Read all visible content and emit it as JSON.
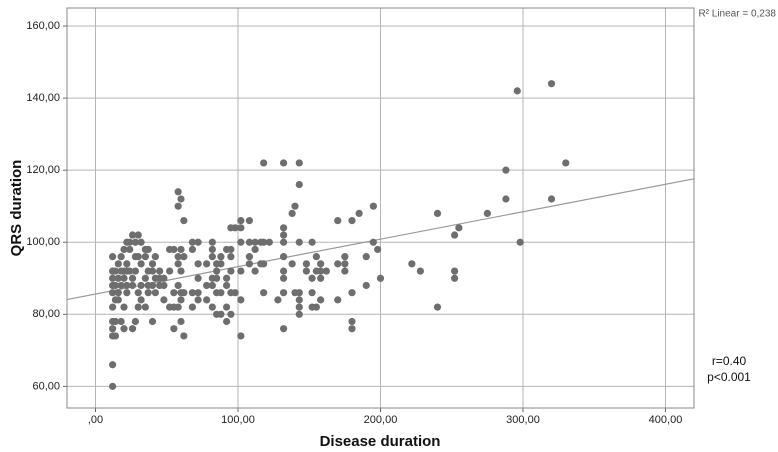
{
  "chart_data": {
    "type": "scatter",
    "x_label": "Disease duration",
    "y_label": "QRS duration",
    "annotations": [
      "R² Linear = 0,238",
      "r=0.40",
      "p<0.001"
    ],
    "color": "#6e6e6e",
    "grid": true,
    "xlim": [
      -20,
      420
    ],
    "ylim": [
      54,
      165
    ],
    "xticks": [
      {
        "value": 0,
        "label": ",00"
      },
      {
        "value": 100,
        "label": "100,00"
      },
      {
        "value": 200,
        "label": "200,00"
      },
      {
        "value": 300,
        "label": "300,00"
      },
      {
        "value": 400,
        "label": "400,00"
      }
    ],
    "yticks": [
      {
        "value": 60,
        "label": "60,00"
      },
      {
        "value": 80,
        "label": "80,00"
      },
      {
        "value": 100,
        "label": "100,00"
      },
      {
        "value": 120,
        "label": "120,00"
      },
      {
        "value": 140,
        "label": "140,00"
      },
      {
        "value": 160,
        "label": "160,00"
      }
    ],
    "fit_line": {
      "color": "#999999",
      "x": [
        -20,
        420
      ],
      "values": [
        84.1,
        117.6
      ]
    },
    "x": [
      12,
      12,
      12,
      12,
      12,
      12,
      12,
      12,
      12,
      12,
      12,
      14,
      14,
      14,
      14,
      14,
      16,
      16,
      16,
      16,
      18,
      18,
      18,
      18,
      20,
      20,
      20,
      20,
      20,
      22,
      22,
      22,
      22,
      22,
      24,
      24,
      24,
      26,
      26,
      26,
      26,
      28,
      28,
      28,
      28,
      30,
      30,
      30,
      30,
      32,
      32,
      32,
      32,
      35,
      35,
      35,
      35,
      37,
      37,
      37,
      37,
      40,
      40,
      40,
      40,
      42,
      42,
      42,
      45,
      45,
      45,
      48,
      48,
      48,
      52,
      52,
      52,
      55,
      55,
      55,
      55,
      58,
      58,
      58,
      58,
      58,
      58,
      60,
      60,
      60,
      60,
      60,
      60,
      62,
      62,
      62,
      62,
      68,
      68,
      68,
      68,
      72,
      72,
      72,
      72,
      72,
      78,
      78,
      78,
      82,
      82,
      82,
      82,
      82,
      82,
      85,
      85,
      85,
      85,
      85,
      88,
      88,
      88,
      88,
      92,
      92,
      92,
      92,
      92,
      95,
      95,
      95,
      95,
      95,
      95,
      98,
      98,
      102,
      102,
      102,
      102,
      102,
      102,
      108,
      108,
      108,
      108,
      112,
      112,
      112,
      116,
      116,
      118,
      118,
      118,
      118,
      122,
      128,
      132,
      132,
      132,
      132,
      132,
      132,
      132,
      132,
      132,
      138,
      138,
      140,
      140,
      143,
      143,
      143,
      143,
      143,
      143,
      143,
      148,
      148,
      152,
      152,
      152,
      152,
      155,
      155,
      155,
      158,
      158,
      158,
      158,
      162,
      170,
      170,
      170,
      175,
      175,
      175,
      180,
      180,
      180,
      180,
      185,
      190,
      190,
      195,
      195,
      198,
      200,
      222,
      228,
      240,
      240,
      252,
      252,
      252,
      255,
      275,
      288,
      288,
      296,
      298,
      320,
      320,
      330
    ],
    "values": [
      60,
      66,
      74,
      76,
      78,
      82,
      86,
      88,
      90,
      92,
      96,
      74,
      78,
      84,
      88,
      92,
      84,
      86,
      90,
      94,
      78,
      88,
      92,
      96,
      76,
      82,
      90,
      92,
      98,
      86,
      88,
      92,
      94,
      100,
      92,
      98,
      100,
      76,
      88,
      90,
      102,
      78,
      92,
      96,
      100,
      82,
      86,
      96,
      102,
      84,
      88,
      94,
      100,
      82,
      90,
      96,
      98,
      86,
      88,
      92,
      98,
      78,
      88,
      92,
      94,
      86,
      90,
      96,
      88,
      90,
      92,
      84,
      88,
      90,
      82,
      92,
      98,
      76,
      82,
      86,
      98,
      82,
      88,
      94,
      96,
      110,
      114,
      78,
      84,
      86,
      92,
      98,
      112,
      74,
      86,
      96,
      106,
      82,
      86,
      98,
      100,
      84,
      86,
      90,
      94,
      100,
      84,
      88,
      94,
      82,
      88,
      90,
      96,
      98,
      100,
      80,
      86,
      90,
      92,
      94,
      80,
      86,
      94,
      96,
      78,
      82,
      88,
      90,
      98,
      80,
      86,
      92,
      96,
      98,
      104,
      86,
      104,
      74,
      84,
      92,
      100,
      104,
      106,
      94,
      96,
      100,
      106,
      92,
      98,
      100,
      94,
      100,
      86,
      94,
      100,
      122,
      100,
      84,
      76,
      86,
      90,
      92,
      96,
      100,
      102,
      104,
      122,
      94,
      108,
      86,
      110,
      80,
      82,
      84,
      86,
      100,
      116,
      122,
      92,
      94,
      82,
      86,
      90,
      100,
      82,
      92,
      96,
      84,
      90,
      92,
      94,
      92,
      84,
      94,
      106,
      92,
      94,
      96,
      76,
      78,
      86,
      106,
      108,
      88,
      96,
      100,
      110,
      98,
      90,
      94,
      92,
      82,
      108,
      90,
      92,
      102,
      104,
      108,
      112,
      120,
      142,
      100,
      112,
      144,
      122
    ]
  }
}
